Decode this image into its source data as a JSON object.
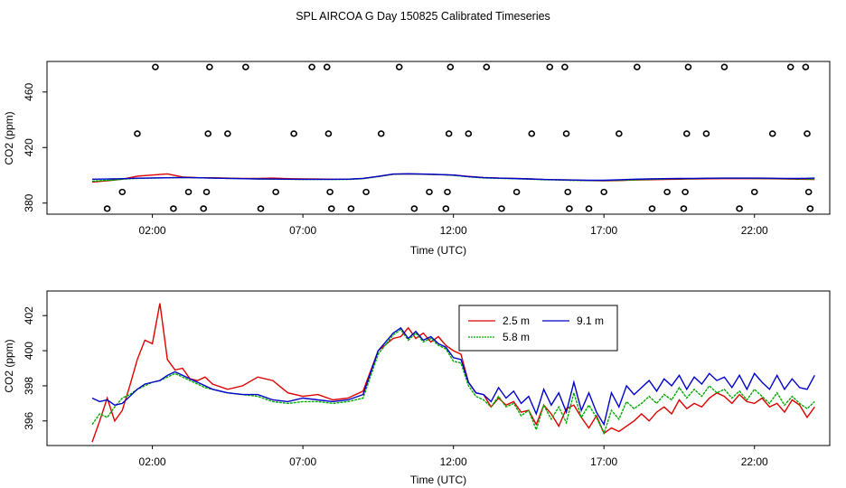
{
  "title": "SPL AIRCOA G  Day 150825  Calibrated Timeseries",
  "chart_data": [
    {
      "type": "line",
      "xlabel": "Time (UTC)",
      "ylabel": "CO2 (ppm)",
      "xlim": [
        -1.5,
        24.5
      ],
      "ylim": [
        372,
        482
      ],
      "xticks": [
        2,
        7,
        12,
        17,
        22
      ],
      "xticklabels": [
        "02:00",
        "07:00",
        "12:00",
        "17:00",
        "22:00"
      ],
      "yticks": [
        380,
        420,
        460
      ],
      "yticklabels": [
        "380",
        "420",
        "460"
      ],
      "x": [
        0.0,
        0.5,
        1.0,
        1.5,
        2.0,
        2.5,
        3.0,
        3.5,
        4.0,
        4.5,
        5.0,
        5.5,
        6.0,
        6.5,
        7.0,
        7.5,
        8.0,
        8.5,
        9.0,
        9.5,
        10.0,
        10.5,
        11.0,
        11.5,
        12.0,
        12.5,
        13.0,
        13.5,
        14.0,
        14.5,
        15.0,
        15.5,
        16.0,
        16.5,
        17.0,
        17.5,
        18.0,
        18.5,
        19.0,
        19.5,
        20.0,
        20.5,
        21.0,
        21.5,
        22.0,
        22.5,
        23.0,
        23.5,
        24.0
      ],
      "series": [
        {
          "color": "#dd0000",
          "values": [
            395.2,
            396.0,
            397.2,
            399.4,
            400.2,
            401.0,
            398.8,
            398.3,
            398.2,
            398.0,
            397.8,
            397.8,
            398.0,
            397.6,
            397.4,
            397.3,
            397.2,
            397.2,
            397.8,
            399.2,
            400.8,
            401.0,
            400.8,
            400.5,
            400.2,
            399.2,
            398.4,
            398.0,
            397.8,
            397.5,
            397.0,
            396.8,
            396.6,
            396.2,
            396.0,
            396.2,
            396.6,
            396.8,
            397.0,
            397.2,
            397.4,
            397.5,
            397.6,
            397.6,
            397.6,
            397.5,
            397.4,
            397.2,
            397.0
          ]
        },
        {
          "color": "#00aa00",
          "values": [
            395.8,
            396.4,
            397.2,
            397.8,
            398.0,
            398.2,
            398.4,
            398.2,
            398.0,
            397.8,
            397.6,
            397.4,
            397.2,
            397.1,
            397.0,
            397.0,
            397.0,
            397.0,
            397.6,
            399.0,
            400.8,
            401.0,
            400.8,
            400.5,
            400.0,
            398.9,
            398.1,
            397.8,
            397.6,
            397.2,
            396.8,
            396.6,
            396.3,
            396.2,
            396.2,
            396.4,
            396.6,
            397.0,
            397.3,
            397.5,
            397.6,
            397.8,
            397.9,
            397.9,
            397.8,
            397.7,
            397.5,
            397.3,
            397.1
          ]
        },
        {
          "color": "#0000cc",
          "values": [
            397.2,
            397.3,
            397.6,
            397.9,
            398.1,
            398.2,
            398.4,
            398.2,
            398.0,
            397.8,
            397.6,
            397.4,
            397.3,
            397.2,
            397.1,
            397.1,
            397.1,
            397.2,
            397.8,
            399.2,
            400.9,
            401.1,
            400.9,
            400.6,
            400.2,
            399.1,
            398.3,
            398.0,
            397.7,
            397.4,
            397.0,
            396.8,
            396.6,
            396.4,
            396.4,
            396.8,
            397.2,
            397.4,
            397.6,
            397.7,
            397.8,
            397.9,
            398.0,
            398.0,
            398.0,
            397.9,
            397.8,
            397.7,
            398.0
          ]
        }
      ],
      "points": [
        {
          "x": 0.5,
          "y": 376
        },
        {
          "x": 1.0,
          "y": 388
        },
        {
          "x": 1.5,
          "y": 430
        },
        {
          "x": 2.1,
          "y": 478
        },
        {
          "x": 2.7,
          "y": 376
        },
        {
          "x": 3.2,
          "y": 388
        },
        {
          "x": 3.7,
          "y": 376
        },
        {
          "x": 3.8,
          "y": 388
        },
        {
          "x": 3.85,
          "y": 430
        },
        {
          "x": 3.9,
          "y": 478
        },
        {
          "x": 4.5,
          "y": 430
        },
        {
          "x": 5.1,
          "y": 478
        },
        {
          "x": 5.6,
          "y": 376
        },
        {
          "x": 6.1,
          "y": 388
        },
        {
          "x": 6.7,
          "y": 430
        },
        {
          "x": 7.3,
          "y": 478
        },
        {
          "x": 7.8,
          "y": 478
        },
        {
          "x": 7.85,
          "y": 430
        },
        {
          "x": 7.9,
          "y": 388
        },
        {
          "x": 7.95,
          "y": 376
        },
        {
          "x": 8.6,
          "y": 376
        },
        {
          "x": 9.1,
          "y": 388
        },
        {
          "x": 9.6,
          "y": 430
        },
        {
          "x": 10.2,
          "y": 478
        },
        {
          "x": 10.7,
          "y": 376
        },
        {
          "x": 11.2,
          "y": 388
        },
        {
          "x": 11.75,
          "y": 376
        },
        {
          "x": 11.8,
          "y": 388
        },
        {
          "x": 11.85,
          "y": 430
        },
        {
          "x": 11.9,
          "y": 478
        },
        {
          "x": 12.5,
          "y": 430
        },
        {
          "x": 13.1,
          "y": 478
        },
        {
          "x": 13.6,
          "y": 376
        },
        {
          "x": 14.1,
          "y": 388
        },
        {
          "x": 14.6,
          "y": 430
        },
        {
          "x": 15.2,
          "y": 478
        },
        {
          "x": 15.7,
          "y": 478
        },
        {
          "x": 15.75,
          "y": 430
        },
        {
          "x": 15.8,
          "y": 388
        },
        {
          "x": 15.85,
          "y": 376
        },
        {
          "x": 16.5,
          "y": 376
        },
        {
          "x": 17.0,
          "y": 388
        },
        {
          "x": 17.5,
          "y": 430
        },
        {
          "x": 18.1,
          "y": 478
        },
        {
          "x": 18.6,
          "y": 376
        },
        {
          "x": 19.1,
          "y": 388
        },
        {
          "x": 19.65,
          "y": 376
        },
        {
          "x": 19.7,
          "y": 388
        },
        {
          "x": 19.75,
          "y": 430
        },
        {
          "x": 19.8,
          "y": 478
        },
        {
          "x": 20.4,
          "y": 430
        },
        {
          "x": 21.0,
          "y": 478
        },
        {
          "x": 21.5,
          "y": 376
        },
        {
          "x": 22.0,
          "y": 388
        },
        {
          "x": 22.6,
          "y": 430
        },
        {
          "x": 23.2,
          "y": 478
        },
        {
          "x": 23.7,
          "y": 478
        },
        {
          "x": 23.75,
          "y": 430
        },
        {
          "x": 23.8,
          "y": 388
        },
        {
          "x": 23.85,
          "y": 376
        }
      ]
    },
    {
      "type": "line",
      "xlabel": "Time (UTC)",
      "ylabel": "CO2 (ppm)",
      "xlim": [
        -1.5,
        24.5
      ],
      "ylim": [
        394.6,
        403.4
      ],
      "xticks": [
        2,
        7,
        12,
        17,
        22
      ],
      "xticklabels": [
        "02:00",
        "07:00",
        "12:00",
        "17:00",
        "22:00"
      ],
      "yticks": [
        396,
        398,
        400,
        402
      ],
      "yticklabels": [
        "396",
        "398",
        "400",
        "402"
      ],
      "legend": [
        "2.5 m",
        "9.1 m",
        "5.8 m"
      ],
      "x": [
        0.0,
        0.25,
        0.5,
        0.75,
        1.0,
        1.25,
        1.5,
        1.75,
        2.0,
        2.25,
        2.5,
        2.75,
        3.0,
        3.25,
        3.5,
        3.75,
        4.0,
        4.5,
        5.0,
        5.5,
        6.0,
        6.5,
        7.0,
        7.5,
        8.0,
        8.5,
        9.0,
        9.5,
        10.0,
        10.25,
        10.5,
        10.75,
        11.0,
        11.25,
        11.5,
        11.75,
        12.0,
        12.25,
        12.5,
        12.75,
        13.0,
        13.25,
        13.5,
        13.75,
        14.0,
        14.25,
        14.5,
        14.75,
        15.0,
        15.25,
        15.5,
        15.75,
        16.0,
        16.25,
        16.5,
        16.75,
        17.0,
        17.25,
        17.5,
        17.75,
        18.0,
        18.25,
        18.5,
        18.75,
        19.0,
        19.25,
        19.5,
        19.75,
        20.0,
        20.25,
        20.5,
        20.75,
        21.0,
        21.25,
        21.5,
        21.75,
        22.0,
        22.25,
        22.5,
        22.75,
        23.0,
        23.25,
        23.5,
        23.75,
        24.0
      ],
      "series": [
        {
          "name": "2.5 m",
          "color": "#dd0000",
          "values": [
            394.8,
            396.0,
            397.3,
            396.0,
            396.6,
            398.0,
            399.5,
            400.6,
            400.4,
            402.7,
            399.5,
            398.9,
            399.0,
            398.4,
            398.3,
            398.5,
            398.1,
            397.8,
            398.0,
            398.5,
            398.3,
            397.6,
            397.4,
            397.5,
            397.2,
            397.3,
            397.7,
            400.0,
            400.7,
            400.8,
            401.3,
            400.7,
            401.0,
            400.5,
            400.8,
            400.3,
            400.0,
            399.8,
            398.2,
            397.6,
            397.5,
            396.8,
            397.3,
            396.9,
            397.1,
            396.5,
            396.6,
            395.8,
            396.9,
            396.4,
            395.7,
            396.7,
            396.9,
            396.2,
            395.6,
            396.3,
            395.3,
            395.6,
            395.4,
            395.7,
            396.0,
            396.4,
            396.0,
            396.5,
            396.8,
            396.4,
            397.2,
            396.7,
            397.0,
            396.8,
            397.3,
            397.6,
            397.4,
            397.0,
            397.5,
            397.1,
            397.0,
            397.3,
            396.8,
            397.0,
            396.5,
            397.2,
            396.9,
            396.2,
            396.8
          ]
        },
        {
          "name": "5.8 m",
          "color": "#00aa00",
          "values": [
            395.8,
            396.4,
            396.2,
            396.8,
            397.3,
            397.5,
            397.8,
            398.0,
            398.2,
            398.3,
            398.5,
            398.7,
            398.5,
            398.3,
            398.1,
            397.9,
            397.8,
            397.6,
            397.5,
            397.4,
            397.1,
            397.0,
            397.1,
            397.1,
            397.0,
            397.1,
            397.3,
            399.8,
            400.9,
            401.2,
            400.6,
            401.0,
            400.5,
            400.7,
            400.3,
            400.1,
            399.4,
            399.3,
            398.0,
            397.4,
            397.2,
            396.8,
            397.4,
            396.8,
            397.0,
            396.3,
            396.6,
            395.5,
            396.9,
            396.1,
            396.8,
            395.9,
            397.6,
            396.2,
            396.9,
            396.2,
            395.3,
            396.6,
            396.1,
            397.1,
            396.7,
            397.0,
            397.4,
            397.0,
            397.5,
            397.2,
            397.9,
            397.3,
            397.8,
            397.4,
            398.0,
            397.6,
            397.8,
            397.3,
            397.7,
            397.2,
            397.8,
            397.4,
            397.0,
            397.6,
            396.9,
            397.4,
            397.0,
            396.7,
            397.1
          ]
        },
        {
          "name": "9.1 m",
          "color": "#0000cc",
          "values": [
            397.3,
            397.1,
            397.2,
            396.9,
            397.0,
            397.4,
            397.8,
            398.1,
            398.2,
            398.3,
            398.6,
            398.8,
            398.6,
            398.4,
            398.2,
            398.0,
            397.8,
            397.6,
            397.5,
            397.5,
            397.2,
            397.1,
            397.3,
            397.2,
            397.1,
            397.2,
            397.5,
            400.0,
            401.0,
            401.3,
            400.7,
            401.1,
            400.6,
            400.8,
            400.4,
            400.2,
            399.6,
            399.5,
            398.2,
            397.6,
            397.5,
            397.1,
            397.9,
            397.3,
            397.7,
            397.0,
            397.4,
            396.4,
            397.8,
            396.9,
            397.6,
            396.5,
            398.2,
            396.6,
            397.6,
            396.5,
            395.8,
            397.6,
            396.8,
            398.0,
            397.5,
            397.9,
            398.3,
            397.7,
            398.4,
            398.0,
            398.6,
            397.8,
            398.5,
            398.1,
            398.7,
            398.3,
            398.5,
            397.9,
            398.6,
            397.8,
            398.7,
            398.2,
            397.8,
            398.6,
            397.8,
            398.4,
            397.9,
            397.8,
            398.6
          ]
        }
      ]
    }
  ]
}
